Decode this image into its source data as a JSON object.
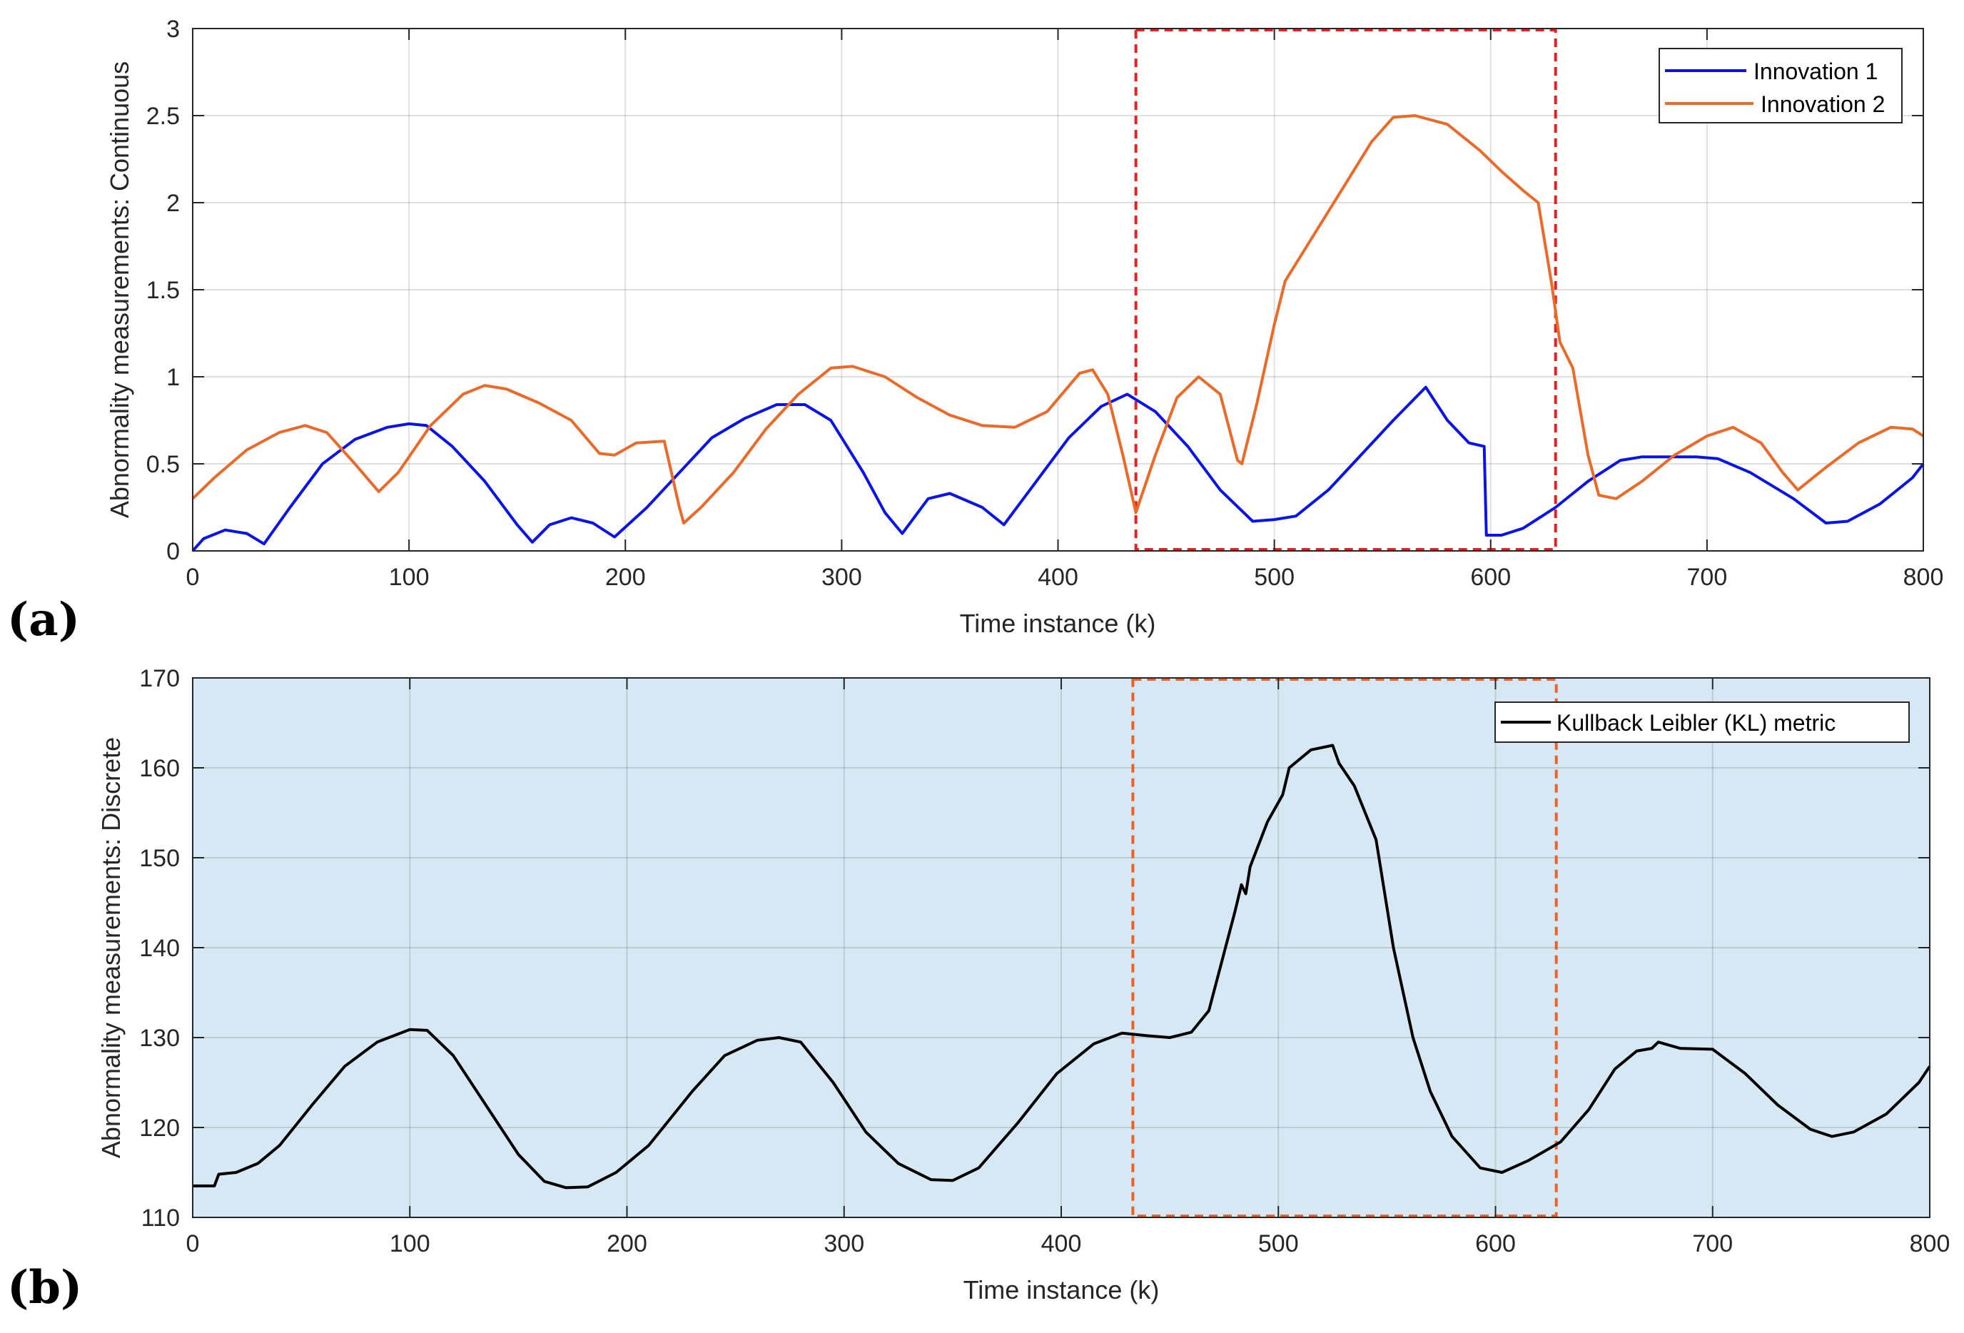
{
  "chart_data": [
    {
      "panel_label": "(a)",
      "type": "line",
      "xlabel": "Time instance (k)",
      "ylabel": "Abnormality measurements: Continuous",
      "xlim": [
        0,
        800
      ],
      "ylim": [
        0,
        3
      ],
      "xticks": [
        0,
        100,
        200,
        300,
        400,
        500,
        600,
        700,
        800
      ],
      "yticks": [
        0,
        0.5,
        1,
        1.5,
        2,
        2.5,
        3
      ],
      "ytick_labels": [
        "0",
        "0.5",
        "1",
        "1.5",
        "2",
        "2.5",
        "3"
      ],
      "grid": true,
      "background": "#ffffff",
      "legend_position": "top-right",
      "highlight_box": {
        "x": [
          436,
          630
        ],
        "y": [
          0,
          3
        ],
        "color": "#e32222",
        "style": "dashed"
      },
      "series": [
        {
          "name": "Innovation 1",
          "color": "#0a14e6",
          "points": [
            [
              0,
              0
            ],
            [
              5,
              0.07
            ],
            [
              15,
              0.12
            ],
            [
              25,
              0.1
            ],
            [
              33,
              0.04
            ],
            [
              45,
              0.25
            ],
            [
              60,
              0.5
            ],
            [
              75,
              0.64
            ],
            [
              90,
              0.71
            ],
            [
              100,
              0.73
            ],
            [
              108,
              0.72
            ],
            [
              120,
              0.6
            ],
            [
              135,
              0.4
            ],
            [
              150,
              0.15
            ],
            [
              157,
              0.05
            ],
            [
              165,
              0.15
            ],
            [
              175,
              0.19
            ],
            [
              185,
              0.16
            ],
            [
              195,
              0.08
            ],
            [
              210,
              0.25
            ],
            [
              225,
              0.45
            ],
            [
              240,
              0.65
            ],
            [
              255,
              0.76
            ],
            [
              270,
              0.84
            ],
            [
              283,
              0.84
            ],
            [
              295,
              0.75
            ],
            [
              310,
              0.45
            ],
            [
              320,
              0.22
            ],
            [
              328,
              0.1
            ],
            [
              340,
              0.3
            ],
            [
              350,
              0.33
            ],
            [
              365,
              0.25
            ],
            [
              375,
              0.15
            ],
            [
              390,
              0.4
            ],
            [
              405,
              0.65
            ],
            [
              420,
              0.83
            ],
            [
              432,
              0.9
            ],
            [
              445,
              0.8
            ],
            [
              460,
              0.6
            ],
            [
              475,
              0.35
            ],
            [
              490,
              0.17
            ],
            [
              500,
              0.18
            ],
            [
              510,
              0.2
            ],
            [
              525,
              0.35
            ],
            [
              540,
              0.55
            ],
            [
              555,
              0.75
            ],
            [
              570,
              0.94
            ],
            [
              580,
              0.75
            ],
            [
              590,
              0.62
            ],
            [
              597,
              0.6
            ],
            [
              598,
              0.09
            ],
            [
              605,
              0.09
            ],
            [
              615,
              0.13
            ],
            [
              630,
              0.25
            ],
            [
              645,
              0.4
            ],
            [
              660,
              0.52
            ],
            [
              670,
              0.54
            ],
            [
              680,
              0.54
            ],
            [
              695,
              0.54
            ],
            [
              705,
              0.53
            ],
            [
              720,
              0.45
            ],
            [
              740,
              0.3
            ],
            [
              755,
              0.16
            ],
            [
              765,
              0.17
            ],
            [
              780,
              0.27
            ],
            [
              795,
              0.42
            ],
            [
              800,
              0.5
            ]
          ]
        },
        {
          "name": "Innovation 2",
          "color": "#ea6a2a",
          "points": [
            [
              0,
              0.3
            ],
            [
              10,
              0.42
            ],
            [
              25,
              0.58
            ],
            [
              40,
              0.68
            ],
            [
              52,
              0.72
            ],
            [
              62,
              0.68
            ],
            [
              75,
              0.5
            ],
            [
              86,
              0.34
            ],
            [
              95,
              0.45
            ],
            [
              110,
              0.72
            ],
            [
              125,
              0.9
            ],
            [
              135,
              0.95
            ],
            [
              145,
              0.93
            ],
            [
              160,
              0.85
            ],
            [
              175,
              0.75
            ],
            [
              188,
              0.56
            ],
            [
              195,
              0.55
            ],
            [
              205,
              0.62
            ],
            [
              218,
              0.63
            ],
            [
              225,
              0.25
            ],
            [
              227,
              0.16
            ],
            [
              235,
              0.25
            ],
            [
              250,
              0.45
            ],
            [
              265,
              0.7
            ],
            [
              280,
              0.9
            ],
            [
              295,
              1.05
            ],
            [
              305,
              1.06
            ],
            [
              320,
              1.0
            ],
            [
              335,
              0.88
            ],
            [
              350,
              0.78
            ],
            [
              365,
              0.72
            ],
            [
              380,
              0.71
            ],
            [
              395,
              0.8
            ],
            [
              410,
              1.02
            ],
            [
              416,
              1.04
            ],
            [
              423,
              0.9
            ],
            [
              430,
              0.55
            ],
            [
              436,
              0.22
            ],
            [
              445,
              0.55
            ],
            [
              455,
              0.88
            ],
            [
              465,
              1.0
            ],
            [
              475,
              0.9
            ],
            [
              483,
              0.52
            ],
            [
              485,
              0.5
            ],
            [
              492,
              0.85
            ],
            [
              500,
              1.3
            ],
            [
              505,
              1.55
            ],
            [
              515,
              1.75
            ],
            [
              530,
              2.05
            ],
            [
              545,
              2.35
            ],
            [
              555,
              2.49
            ],
            [
              565,
              2.5
            ],
            [
              580,
              2.45
            ],
            [
              595,
              2.3
            ],
            [
              605,
              2.18
            ],
            [
              615,
              2.07
            ],
            [
              622,
              2.0
            ],
            [
              628,
              1.55
            ],
            [
              632,
              1.2
            ],
            [
              638,
              1.05
            ],
            [
              645,
              0.55
            ],
            [
              650,
              0.32
            ],
            [
              658,
              0.3
            ],
            [
              670,
              0.4
            ],
            [
              685,
              0.55
            ],
            [
              700,
              0.66
            ],
            [
              712,
              0.71
            ],
            [
              725,
              0.62
            ],
            [
              735,
              0.45
            ],
            [
              742,
              0.35
            ],
            [
              755,
              0.48
            ],
            [
              770,
              0.62
            ],
            [
              785,
              0.71
            ],
            [
              795,
              0.7
            ],
            [
              800,
              0.66
            ]
          ]
        }
      ]
    },
    {
      "panel_label": "(b)",
      "type": "line",
      "xlabel": "Time instance (k)",
      "ylabel": "Abnormality measurements: Discrete",
      "xlim": [
        0,
        800
      ],
      "ylim": [
        110,
        170
      ],
      "xticks": [
        0,
        100,
        200,
        300,
        400,
        500,
        600,
        700,
        800
      ],
      "yticks": [
        110,
        120,
        130,
        140,
        150,
        160,
        170
      ],
      "ytick_labels": [
        "110",
        "120",
        "130",
        "140",
        "150",
        "160",
        "170"
      ],
      "grid": true,
      "background": "#d6e8f4",
      "legend_position": "top-right",
      "highlight_box": {
        "x": [
          433,
          628
        ],
        "y": [
          110,
          170
        ],
        "color": "#e8622a",
        "style": "dashed"
      },
      "series": [
        {
          "name": "Kullback Leibler (KL) metric",
          "color": "#000000",
          "points": [
            [
              0,
              113.5
            ],
            [
              10,
              113.5
            ],
            [
              12,
              114.8
            ],
            [
              20,
              115
            ],
            [
              30,
              116
            ],
            [
              40,
              118
            ],
            [
              55,
              122.5
            ],
            [
              70,
              126.8
            ],
            [
              85,
              129.5
            ],
            [
              100,
              130.9
            ],
            [
              108,
              130.8
            ],
            [
              120,
              128
            ],
            [
              135,
              122.5
            ],
            [
              150,
              117
            ],
            [
              162,
              114
            ],
            [
              172,
              113.3
            ],
            [
              182,
              113.4
            ],
            [
              195,
              115
            ],
            [
              210,
              118
            ],
            [
              230,
              124
            ],
            [
              245,
              128
            ],
            [
              260,
              129.7
            ],
            [
              270,
              130
            ],
            [
              280,
              129.5
            ],
            [
              295,
              125
            ],
            [
              310,
              119.5
            ],
            [
              325,
              116
            ],
            [
              340,
              114.2
            ],
            [
              350,
              114.1
            ],
            [
              362,
              115.5
            ],
            [
              380,
              120.5
            ],
            [
              398,
              126
            ],
            [
              415,
              129.3
            ],
            [
              428,
              130.5
            ],
            [
              440,
              130.2
            ],
            [
              450,
              130
            ],
            [
              460,
              130.6
            ],
            [
              468,
              133
            ],
            [
              480,
              144
            ],
            [
              483,
              147
            ],
            [
              485,
              146
            ],
            [
              487,
              149
            ],
            [
              495,
              154
            ],
            [
              502,
              157
            ],
            [
              505,
              160
            ],
            [
              515,
              162
            ],
            [
              525,
              162.5
            ],
            [
              528,
              160.5
            ],
            [
              535,
              158
            ],
            [
              545,
              152
            ],
            [
              553,
              140
            ],
            [
              562,
              130
            ],
            [
              570,
              124
            ],
            [
              580,
              119
            ],
            [
              593,
              115.5
            ],
            [
              603,
              115
            ],
            [
              615,
              116.3
            ],
            [
              630,
              118.4
            ],
            [
              643,
              122
            ],
            [
              655,
              126.5
            ],
            [
              665,
              128.5
            ],
            [
              672,
              128.8
            ],
            [
              675,
              129.5
            ],
            [
              685,
              128.8
            ],
            [
              700,
              128.7
            ],
            [
              715,
              126
            ],
            [
              730,
              122.5
            ],
            [
              745,
              119.8
            ],
            [
              755,
              119
            ],
            [
              765,
              119.5
            ],
            [
              780,
              121.5
            ],
            [
              795,
              125
            ],
            [
              800,
              126.8
            ]
          ]
        }
      ]
    }
  ]
}
